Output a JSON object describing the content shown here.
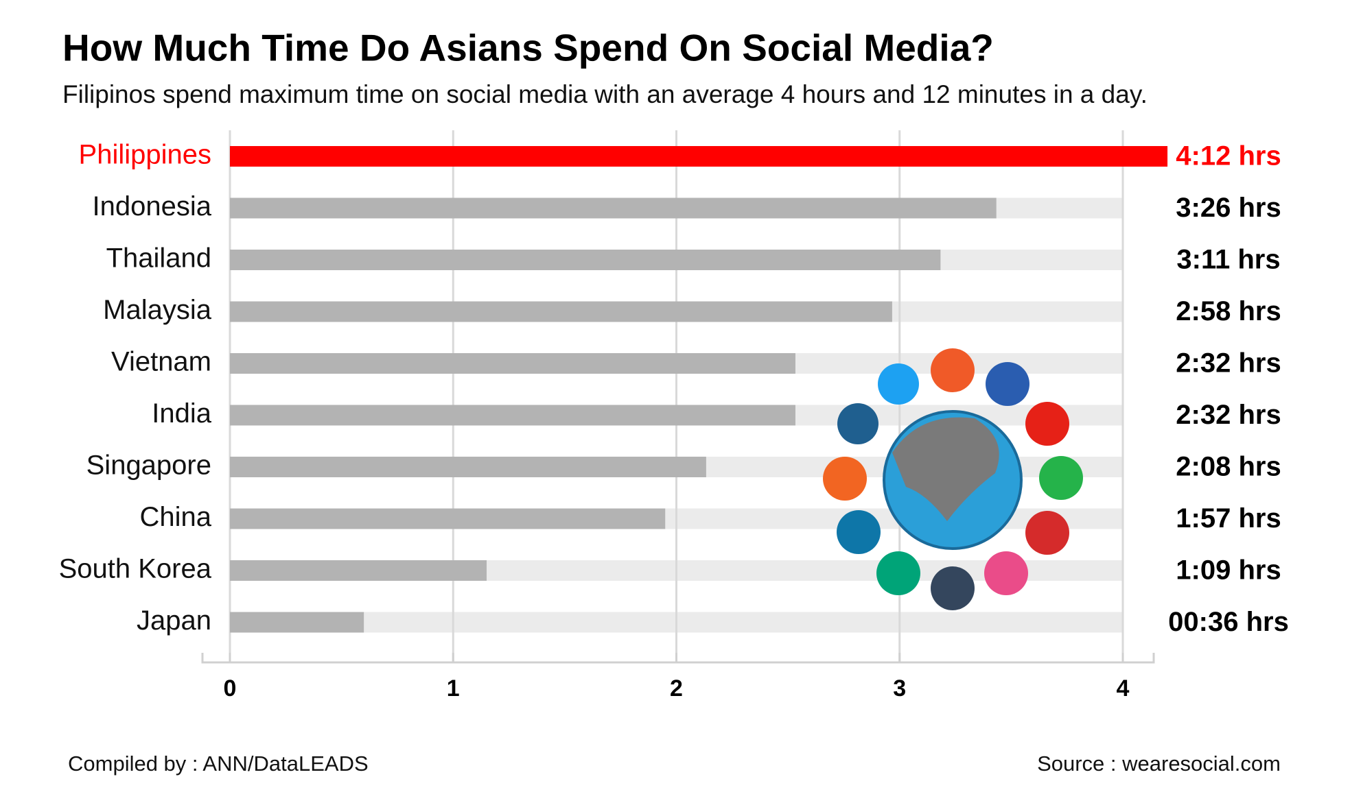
{
  "chart_data": {
    "type": "bar",
    "orientation": "horizontal",
    "title": "How Much Time Do Asians Spend On Social Media?",
    "subtitle": "Filipinos spend maximum time on social media with an average 4 hours and 12 minutes in a day.",
    "categories": [
      "Philippines",
      "Indonesia",
      "Thailand",
      "Malaysia",
      "Vietnam",
      "India",
      "Singapore",
      "China",
      "South Korea",
      "Japan"
    ],
    "values": [
      4.2,
      3.4333,
      3.1833,
      2.9667,
      2.5333,
      2.5333,
      2.1333,
      1.95,
      1.15,
      0.6
    ],
    "value_labels": [
      "4:12 hrs",
      "3:26 hrs",
      "3:11 hrs",
      "2:58 hrs",
      "2:32 hrs",
      "2:32 hrs",
      "2:08 hrs",
      "1:57 hrs",
      "1:09 hrs",
      "00:36 hrs"
    ],
    "colors": [
      "#ff0000",
      "#b3b3b3",
      "#b3b3b3",
      "#b3b3b3",
      "#b3b3b3",
      "#b3b3b3",
      "#b3b3b3",
      "#b3b3b3",
      "#b3b3b3",
      "#b3b3b3"
    ],
    "xlim": [
      0,
      4
    ],
    "xticks": [
      0,
      1,
      2,
      3,
      4
    ],
    "grid": true,
    "footer_left": "Compiled by : ANN/DataLEADS",
    "footer_right": "Source : wearesocial.com"
  }
}
